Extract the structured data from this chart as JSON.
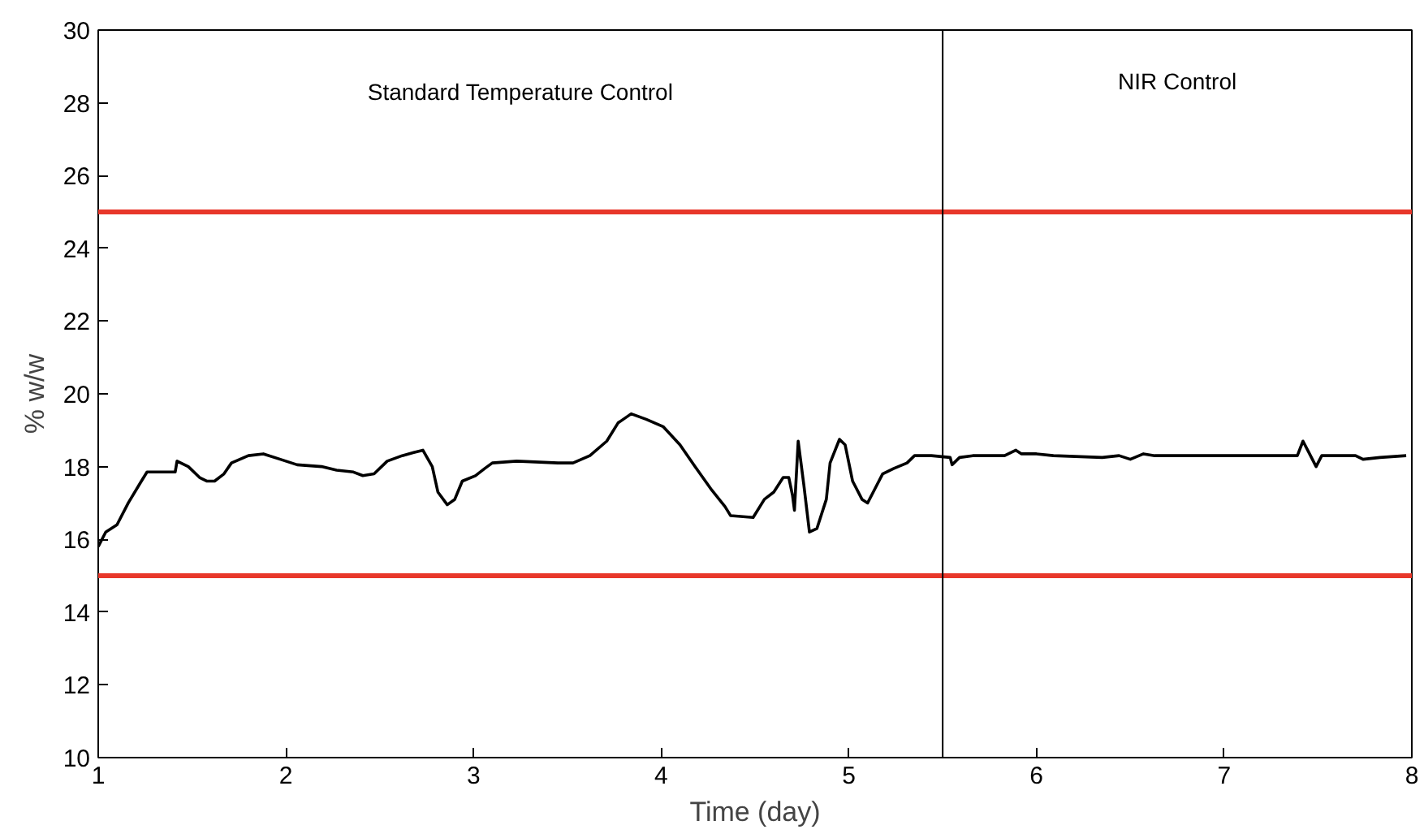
{
  "chart_data": {
    "type": "line",
    "xlabel": "Time (day)",
    "ylabel": "% w/w",
    "xlim": [
      1,
      8
    ],
    "xticks": [
      1,
      2,
      3,
      4,
      5,
      6,
      7,
      8
    ],
    "ylim": [
      10,
      30
    ],
    "yticks": [
      10,
      12,
      14,
      16,
      18,
      20,
      22,
      24,
      26,
      28,
      30
    ],
    "grid": false,
    "marker": "none",
    "line_style": "solid",
    "series": [
      {
        "color": "#000000",
        "x": [
          1.0,
          1.04,
          1.1,
          1.16,
          1.23,
          1.26,
          1.41,
          1.42,
          1.48,
          1.54,
          1.58,
          1.62,
          1.67,
          1.71,
          1.8,
          1.88,
          1.97,
          2.06,
          2.19,
          2.27,
          2.36,
          2.41,
          2.47,
          2.54,
          2.62,
          2.69,
          2.73,
          2.78,
          2.81,
          2.86,
          2.9,
          2.94,
          3.01,
          3.06,
          3.1,
          3.23,
          3.45,
          3.53,
          3.62,
          3.71,
          3.77,
          3.84,
          3.92,
          4.01,
          4.1,
          4.18,
          4.27,
          4.34,
          4.37,
          4.49,
          4.55,
          4.6,
          4.65,
          4.68,
          4.7,
          4.71,
          4.73,
          4.76,
          4.79,
          4.83,
          4.88,
          4.9,
          4.95,
          4.98,
          5.02,
          5.07,
          5.1,
          5.14,
          5.18,
          5.24,
          5.31,
          5.35,
          5.44,
          5.54,
          5.55,
          5.59,
          5.66,
          5.83,
          5.89,
          5.92,
          6.0,
          6.09,
          6.35,
          6.44,
          6.5,
          6.57,
          6.63,
          7.05,
          7.39,
          7.42,
          7.45,
          7.49,
          7.52,
          7.7,
          7.74,
          7.83,
          7.97
        ],
        "values": [
          15.8,
          16.2,
          16.4,
          17.0,
          17.6,
          17.85,
          17.85,
          18.15,
          18.0,
          17.7,
          17.6,
          17.6,
          17.8,
          18.1,
          18.3,
          18.35,
          18.2,
          18.05,
          18.0,
          17.9,
          17.85,
          17.75,
          17.8,
          18.15,
          18.3,
          18.4,
          18.45,
          18.0,
          17.3,
          16.95,
          17.1,
          17.6,
          17.75,
          17.95,
          18.1,
          18.15,
          18.1,
          18.1,
          18.3,
          18.7,
          19.2,
          19.45,
          19.3,
          19.1,
          18.6,
          18.0,
          17.35,
          16.9,
          16.65,
          16.6,
          17.1,
          17.3,
          17.7,
          17.7,
          17.2,
          16.8,
          18.7,
          17.5,
          16.2,
          16.3,
          17.1,
          18.1,
          18.75,
          18.6,
          17.6,
          17.1,
          17.0,
          17.4,
          17.8,
          17.95,
          18.1,
          18.3,
          18.3,
          18.25,
          18.05,
          18.25,
          18.3,
          18.3,
          18.45,
          18.35,
          18.35,
          18.3,
          18.25,
          18.3,
          18.2,
          18.35,
          18.3,
          18.3,
          18.3,
          18.7,
          18.4,
          18.0,
          18.3,
          18.3,
          18.2,
          18.25,
          18.3
        ]
      }
    ],
    "ref_lines": [
      {
        "axis": "y",
        "value": 25,
        "color": "#e8372a"
      },
      {
        "axis": "y",
        "value": 15,
        "color": "#e8372a"
      },
      {
        "axis": "x",
        "value": 5.5,
        "color": "#000000"
      }
    ],
    "annotations": [
      "Standard Temperature Control",
      "NIR Control"
    ]
  }
}
